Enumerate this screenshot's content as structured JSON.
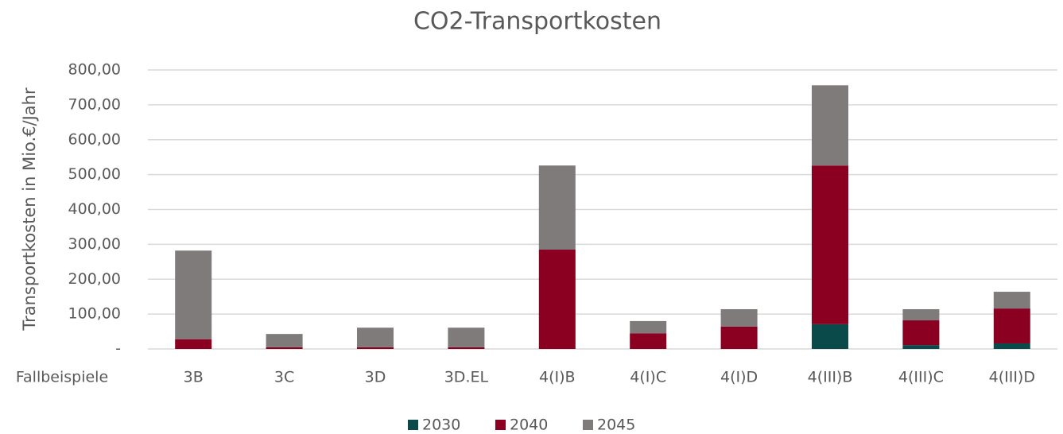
{
  "chart_data": {
    "type": "stacked_bar",
    "title": "CO2-Transportkosten",
    "y_label": "Transportkosten in Mio.€/Jahr",
    "x_label": "Fallbeispiele",
    "categories": [
      "3B",
      "3C",
      "3D",
      "3D.EL",
      "4(I)B",
      "4(I)C",
      "4(I)D",
      "4(III)B",
      "4(III)C",
      "4(III)D"
    ],
    "series": [
      {
        "name": "2030",
        "color": "#0b4a4a",
        "values": [
          0,
          0,
          0,
          0,
          0,
          0,
          0,
          71,
          11,
          16
        ]
      },
      {
        "name": "2040",
        "color": "#8b0020",
        "values": [
          28,
          5,
          5,
          5,
          285,
          45,
          64,
          455,
          71,
          100
        ]
      },
      {
        "name": "2045",
        "color": "#7f7b7b",
        "values": [
          254,
          38,
          56,
          56,
          241,
          35,
          50,
          230,
          32,
          48
        ]
      }
    ],
    "ylim": [
      0,
      800
    ],
    "yticks": [
      {
        "value": 0,
        "label": "-"
      },
      {
        "value": 100,
        "label": "100,00"
      },
      {
        "value": 200,
        "label": "200,00"
      },
      {
        "value": 300,
        "label": "300,00"
      },
      {
        "value": 400,
        "label": "400,00"
      },
      {
        "value": 500,
        "label": "500,00"
      },
      {
        "value": 600,
        "label": "600,00"
      },
      {
        "value": 700,
        "label": "700,00"
      },
      {
        "value": 800,
        "label": "800,00"
      }
    ],
    "grid": true,
    "legend": "bottom"
  }
}
